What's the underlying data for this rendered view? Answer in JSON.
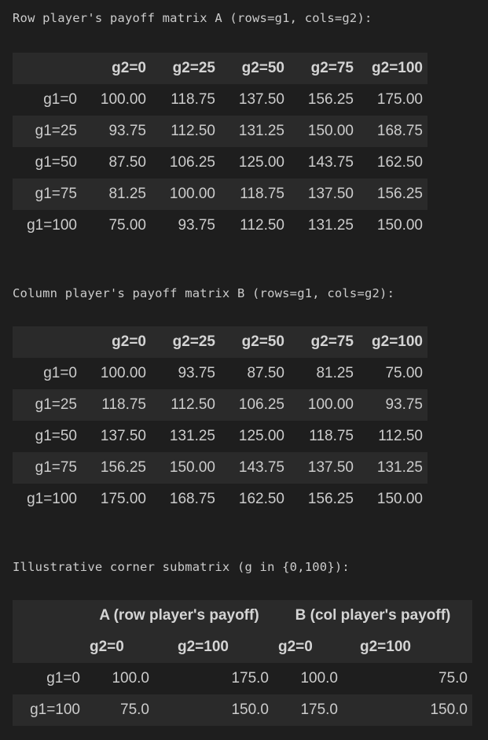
{
  "captions": {
    "a": "Row player's payoff matrix A (rows=g1, cols=g2):",
    "b": "Column player's payoff matrix B (rows=g1, cols=g2):",
    "c": "Illustrative corner submatrix (g in {0,100}):"
  },
  "matrixA": {
    "columns": [
      "g2=0",
      "g2=25",
      "g2=50",
      "g2=75",
      "g2=100"
    ],
    "rows": [
      {
        "label": "g1=0",
        "values": [
          "100.00",
          "118.75",
          "137.50",
          "156.25",
          "175.00"
        ]
      },
      {
        "label": "g1=25",
        "values": [
          "93.75",
          "112.50",
          "131.25",
          "150.00",
          "168.75"
        ]
      },
      {
        "label": "g1=50",
        "values": [
          "87.50",
          "106.25",
          "125.00",
          "143.75",
          "162.50"
        ]
      },
      {
        "label": "g1=75",
        "values": [
          "81.25",
          "100.00",
          "118.75",
          "137.50",
          "156.25"
        ]
      },
      {
        "label": "g1=100",
        "values": [
          "75.00",
          "93.75",
          "112.50",
          "131.25",
          "150.00"
        ]
      }
    ]
  },
  "matrixB": {
    "columns": [
      "g2=0",
      "g2=25",
      "g2=50",
      "g2=75",
      "g2=100"
    ],
    "rows": [
      {
        "label": "g1=0",
        "values": [
          "100.00",
          "93.75",
          "87.50",
          "81.25",
          "75.00"
        ]
      },
      {
        "label": "g1=25",
        "values": [
          "118.75",
          "112.50",
          "106.25",
          "100.00",
          "93.75"
        ]
      },
      {
        "label": "g1=50",
        "values": [
          "137.50",
          "131.25",
          "125.00",
          "118.75",
          "112.50"
        ]
      },
      {
        "label": "g1=75",
        "values": [
          "156.25",
          "150.00",
          "143.75",
          "137.50",
          "131.25"
        ]
      },
      {
        "label": "g1=100",
        "values": [
          "175.00",
          "168.75",
          "162.50",
          "156.25",
          "150.00"
        ]
      }
    ]
  },
  "corner": {
    "group_a": "A (row player's payoff)",
    "group_b": "B (col player's payoff)",
    "columns": [
      "g2=0",
      "g2=100",
      "g2=0",
      "g2=100"
    ],
    "rows": [
      {
        "label": "g1=0",
        "values": [
          "100.0",
          "175.0",
          "100.0",
          "75.0"
        ]
      },
      {
        "label": "g1=100",
        "values": [
          "75.0",
          "150.0",
          "175.0",
          "150.0"
        ]
      }
    ]
  }
}
